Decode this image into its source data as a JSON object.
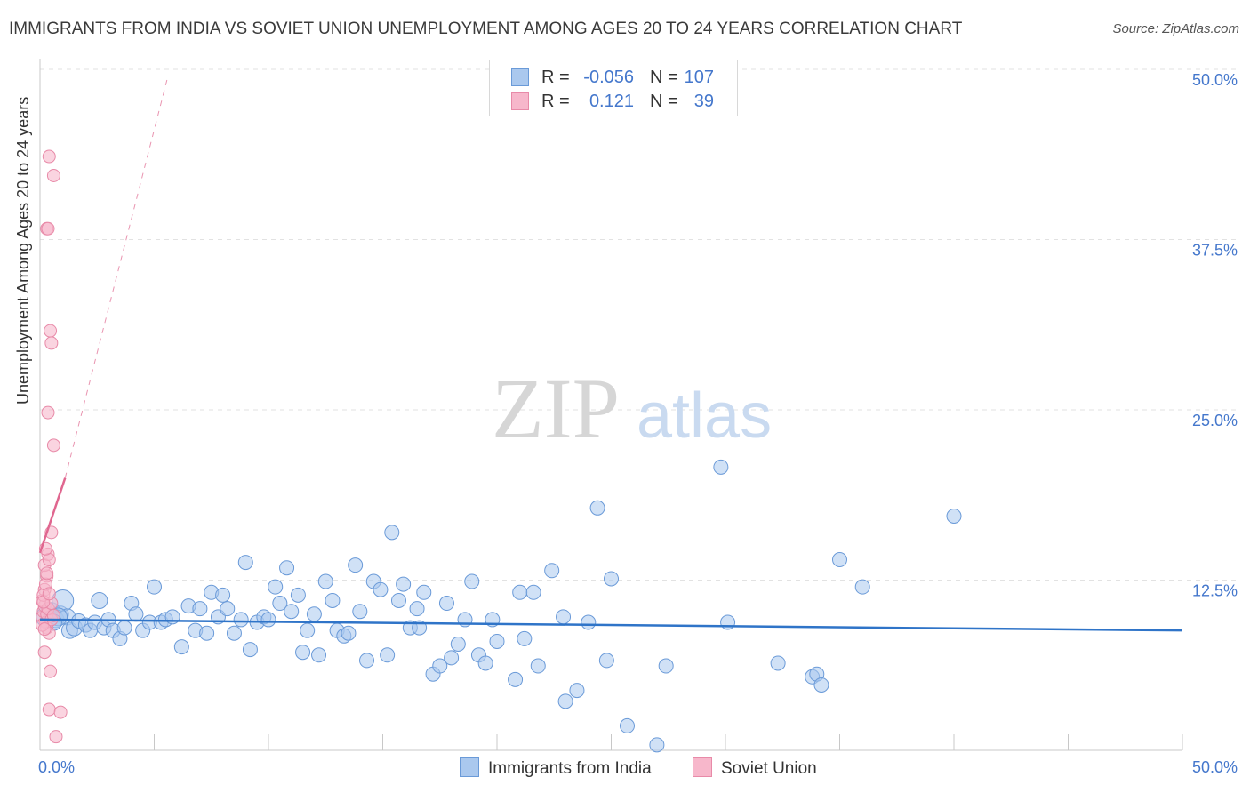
{
  "title": "IMMIGRANTS FROM INDIA VS SOVIET UNION UNEMPLOYMENT AMONG AGES 20 TO 24 YEARS CORRELATION CHART",
  "source": "Source: ZipAtlas.com",
  "watermark": {
    "zip": "ZIP",
    "atlas": "atlas"
  },
  "legend": {
    "india": {
      "r_label": "R =",
      "r_value": "-0.056",
      "n_label": "N =",
      "n_value": "107"
    },
    "soviet": {
      "r_label": "R =",
      "r_value": "0.121",
      "n_label": "N =",
      "n_value": "39"
    }
  },
  "bottom_legend": {
    "india": "Immigrants from India",
    "soviet": "Soviet Union"
  },
  "colors": {
    "india_fill": "#aac8ee",
    "india_stroke": "#6a9ad8",
    "india_line": "#2f74c8",
    "soviet_fill": "#f7b7cb",
    "soviet_stroke": "#e88aa8",
    "soviet_line": "#e0668f",
    "tick_label": "#4477cc",
    "grid": "#e2e2e2"
  },
  "chart_data": {
    "type": "scatter",
    "title": "IMMIGRANTS FROM INDIA VS SOVIET UNION UNEMPLOYMENT AMONG AGES 20 TO 24 YEARS CORRELATION CHART",
    "xlabel": "",
    "ylabel": "Unemployment Among Ages 20 to 24 years",
    "xlim": [
      0,
      50
    ],
    "ylim": [
      0,
      50
    ],
    "x_tick_labels": [
      "0.0%",
      "50.0%"
    ],
    "y_ticks": [
      12.5,
      25.0,
      37.5,
      50.0
    ],
    "y_tick_labels": [
      "12.5%",
      "25.0%",
      "37.5%",
      "50.0%"
    ],
    "grid": true,
    "series": [
      {
        "name": "Immigrants from India",
        "r": -0.056,
        "n": 107,
        "trend": {
          "x": [
            0,
            50
          ],
          "y": [
            9.6,
            8.8
          ],
          "dashed": false
        },
        "points": [
          {
            "x": 0.3,
            "y": 9.8,
            "s": 12
          },
          {
            "x": 0.5,
            "y": 10.2,
            "s": 10
          },
          {
            "x": 0.7,
            "y": 9.6,
            "s": 9
          },
          {
            "x": 0.9,
            "y": 10.0,
            "s": 9
          },
          {
            "x": 1.0,
            "y": 11.0,
            "s": 12
          },
          {
            "x": 1.2,
            "y": 9.8,
            "s": 9
          },
          {
            "x": 1.3,
            "y": 8.8,
            "s": 9
          },
          {
            "x": 1.5,
            "y": 9.0,
            "s": 9
          },
          {
            "x": 1.7,
            "y": 9.5,
            "s": 8
          },
          {
            "x": 2.0,
            "y": 9.2,
            "s": 8
          },
          {
            "x": 2.2,
            "y": 8.8,
            "s": 8
          },
          {
            "x": 2.4,
            "y": 9.4,
            "s": 8
          },
          {
            "x": 2.6,
            "y": 11.0,
            "s": 9
          },
          {
            "x": 2.8,
            "y": 9.0,
            "s": 8
          },
          {
            "x": 3.0,
            "y": 9.6,
            "s": 8
          },
          {
            "x": 3.2,
            "y": 8.8,
            "s": 8
          },
          {
            "x": 3.5,
            "y": 8.2,
            "s": 8
          },
          {
            "x": 3.7,
            "y": 9.0,
            "s": 8
          },
          {
            "x": 4.0,
            "y": 10.8,
            "s": 8
          },
          {
            "x": 4.2,
            "y": 10.0,
            "s": 8
          },
          {
            "x": 4.5,
            "y": 8.8,
            "s": 8
          },
          {
            "x": 4.8,
            "y": 9.4,
            "s": 8
          },
          {
            "x": 5.0,
            "y": 12.0,
            "s": 8
          },
          {
            "x": 5.3,
            "y": 9.4,
            "s": 8
          },
          {
            "x": 5.5,
            "y": 9.6,
            "s": 8
          },
          {
            "x": 5.8,
            "y": 9.8,
            "s": 8
          },
          {
            "x": 6.2,
            "y": 7.6,
            "s": 8
          },
          {
            "x": 6.5,
            "y": 10.6,
            "s": 8
          },
          {
            "x": 6.8,
            "y": 8.8,
            "s": 8
          },
          {
            "x": 7.0,
            "y": 10.4,
            "s": 8
          },
          {
            "x": 7.3,
            "y": 8.6,
            "s": 8
          },
          {
            "x": 7.5,
            "y": 11.6,
            "s": 8
          },
          {
            "x": 7.8,
            "y": 9.8,
            "s": 8
          },
          {
            "x": 8.0,
            "y": 11.4,
            "s": 8
          },
          {
            "x": 8.2,
            "y": 10.4,
            "s": 8
          },
          {
            "x": 8.5,
            "y": 8.6,
            "s": 8
          },
          {
            "x": 8.8,
            "y": 9.6,
            "s": 8
          },
          {
            "x": 9.0,
            "y": 13.8,
            "s": 8
          },
          {
            "x": 9.2,
            "y": 7.4,
            "s": 8
          },
          {
            "x": 9.5,
            "y": 9.4,
            "s": 8
          },
          {
            "x": 9.8,
            "y": 9.8,
            "s": 8
          },
          {
            "x": 10.0,
            "y": 9.6,
            "s": 8
          },
          {
            "x": 10.3,
            "y": 12.0,
            "s": 8
          },
          {
            "x": 10.5,
            "y": 10.8,
            "s": 8
          },
          {
            "x": 10.8,
            "y": 13.4,
            "s": 8
          },
          {
            "x": 11.0,
            "y": 10.2,
            "s": 8
          },
          {
            "x": 11.3,
            "y": 11.4,
            "s": 8
          },
          {
            "x": 11.5,
            "y": 7.2,
            "s": 8
          },
          {
            "x": 11.7,
            "y": 8.8,
            "s": 8
          },
          {
            "x": 12.0,
            "y": 10.0,
            "s": 8
          },
          {
            "x": 12.2,
            "y": 7.0,
            "s": 8
          },
          {
            "x": 12.5,
            "y": 12.4,
            "s": 8
          },
          {
            "x": 12.8,
            "y": 11.0,
            "s": 8
          },
          {
            "x": 13.0,
            "y": 8.8,
            "s": 8
          },
          {
            "x": 13.3,
            "y": 8.4,
            "s": 8
          },
          {
            "x": 13.5,
            "y": 8.6,
            "s": 8
          },
          {
            "x": 13.8,
            "y": 13.6,
            "s": 8
          },
          {
            "x": 14.0,
            "y": 10.2,
            "s": 8
          },
          {
            "x": 14.3,
            "y": 6.6,
            "s": 8
          },
          {
            "x": 14.6,
            "y": 12.4,
            "s": 8
          },
          {
            "x": 14.9,
            "y": 11.8,
            "s": 8
          },
          {
            "x": 15.2,
            "y": 7.0,
            "s": 8
          },
          {
            "x": 15.4,
            "y": 16.0,
            "s": 8
          },
          {
            "x": 15.7,
            "y": 11.0,
            "s": 8
          },
          {
            "x": 15.9,
            "y": 12.2,
            "s": 8
          },
          {
            "x": 16.2,
            "y": 9.0,
            "s": 8
          },
          {
            "x": 16.5,
            "y": 10.4,
            "s": 8
          },
          {
            "x": 16.8,
            "y": 11.6,
            "s": 8
          },
          {
            "x": 16.6,
            "y": 9.0,
            "s": 8
          },
          {
            "x": 17.2,
            "y": 5.6,
            "s": 8
          },
          {
            "x": 17.5,
            "y": 6.2,
            "s": 8
          },
          {
            "x": 17.8,
            "y": 10.8,
            "s": 8
          },
          {
            "x": 18.0,
            "y": 6.8,
            "s": 8
          },
          {
            "x": 18.3,
            "y": 7.8,
            "s": 8
          },
          {
            "x": 18.6,
            "y": 9.6,
            "s": 8
          },
          {
            "x": 18.9,
            "y": 12.4,
            "s": 8
          },
          {
            "x": 19.2,
            "y": 7.0,
            "s": 8
          },
          {
            "x": 19.5,
            "y": 6.4,
            "s": 8
          },
          {
            "x": 19.8,
            "y": 9.6,
            "s": 8
          },
          {
            "x": 20.0,
            "y": 8.0,
            "s": 8
          },
          {
            "x": 20.8,
            "y": 5.2,
            "s": 8
          },
          {
            "x": 21.0,
            "y": 11.6,
            "s": 8
          },
          {
            "x": 21.2,
            "y": 8.2,
            "s": 8
          },
          {
            "x": 21.8,
            "y": 6.2,
            "s": 8
          },
          {
            "x": 21.6,
            "y": 11.6,
            "s": 8
          },
          {
            "x": 22.4,
            "y": 13.2,
            "s": 8
          },
          {
            "x": 23.0,
            "y": 3.6,
            "s": 8
          },
          {
            "x": 23.5,
            "y": 4.4,
            "s": 8
          },
          {
            "x": 22.9,
            "y": 9.8,
            "s": 8
          },
          {
            "x": 24.0,
            "y": 9.4,
            "s": 8
          },
          {
            "x": 24.4,
            "y": 17.8,
            "s": 8
          },
          {
            "x": 24.8,
            "y": 6.6,
            "s": 8
          },
          {
            "x": 25.0,
            "y": 12.6,
            "s": 8
          },
          {
            "x": 25.7,
            "y": 1.8,
            "s": 8
          },
          {
            "x": 27.0,
            "y": 0.4,
            "s": 8
          },
          {
            "x": 27.4,
            "y": 6.2,
            "s": 8
          },
          {
            "x": 29.8,
            "y": 20.8,
            "s": 8
          },
          {
            "x": 30.1,
            "y": 9.4,
            "s": 8
          },
          {
            "x": 32.3,
            "y": 6.4,
            "s": 8
          },
          {
            "x": 33.8,
            "y": 5.4,
            "s": 8
          },
          {
            "x": 34.0,
            "y": 5.6,
            "s": 8
          },
          {
            "x": 34.2,
            "y": 4.8,
            "s": 8
          },
          {
            "x": 35.0,
            "y": 14.0,
            "s": 8
          },
          {
            "x": 36.0,
            "y": 12.0,
            "s": 8
          },
          {
            "x": 40.0,
            "y": 17.2,
            "s": 8
          },
          {
            "x": 0.8,
            "y": 9.8,
            "s": 10
          },
          {
            "x": 0.6,
            "y": 9.4,
            "s": 9
          }
        ]
      },
      {
        "name": "Soviet Union",
        "r": 0.121,
        "n": 39,
        "trend": {
          "x": [
            0,
            1.1
          ],
          "y": [
            14.5,
            20.0
          ],
          "dashed_ext": {
            "x": [
              1.1,
              5.6
            ],
            "y": [
              20.0,
              49.5
            ]
          }
        },
        "points": [
          {
            "x": 0.1,
            "y": 9.8
          },
          {
            "x": 0.15,
            "y": 10.2
          },
          {
            "x": 0.2,
            "y": 10.6
          },
          {
            "x": 0.25,
            "y": 9.4
          },
          {
            "x": 0.3,
            "y": 10.0
          },
          {
            "x": 0.1,
            "y": 11.0
          },
          {
            "x": 0.2,
            "y": 11.8
          },
          {
            "x": 0.3,
            "y": 12.8
          },
          {
            "x": 0.2,
            "y": 13.6
          },
          {
            "x": 0.35,
            "y": 14.4
          },
          {
            "x": 0.4,
            "y": 14.0
          },
          {
            "x": 0.3,
            "y": 9.0
          },
          {
            "x": 0.4,
            "y": 8.6
          },
          {
            "x": 0.5,
            "y": 9.6
          },
          {
            "x": 0.2,
            "y": 7.2
          },
          {
            "x": 0.45,
            "y": 5.8
          },
          {
            "x": 0.4,
            "y": 3.0
          },
          {
            "x": 0.7,
            "y": 1.0
          },
          {
            "x": 0.9,
            "y": 2.8
          },
          {
            "x": 0.5,
            "y": 16.0
          },
          {
            "x": 0.6,
            "y": 22.4
          },
          {
            "x": 0.35,
            "y": 24.8
          },
          {
            "x": 0.45,
            "y": 30.8
          },
          {
            "x": 0.5,
            "y": 29.9
          },
          {
            "x": 0.3,
            "y": 38.3
          },
          {
            "x": 0.35,
            "y": 38.3
          },
          {
            "x": 0.4,
            "y": 43.6
          },
          {
            "x": 0.6,
            "y": 42.2
          },
          {
            "x": 0.15,
            "y": 11.4
          },
          {
            "x": 0.25,
            "y": 12.2
          },
          {
            "x": 0.35,
            "y": 10.4
          },
          {
            "x": 0.5,
            "y": 10.8
          },
          {
            "x": 0.1,
            "y": 9.2
          },
          {
            "x": 0.6,
            "y": 9.9
          },
          {
            "x": 0.2,
            "y": 8.9
          },
          {
            "x": 0.3,
            "y": 13.0
          },
          {
            "x": 0.15,
            "y": 10.9
          },
          {
            "x": 0.4,
            "y": 11.5
          },
          {
            "x": 0.25,
            "y": 14.8
          }
        ]
      }
    ]
  }
}
